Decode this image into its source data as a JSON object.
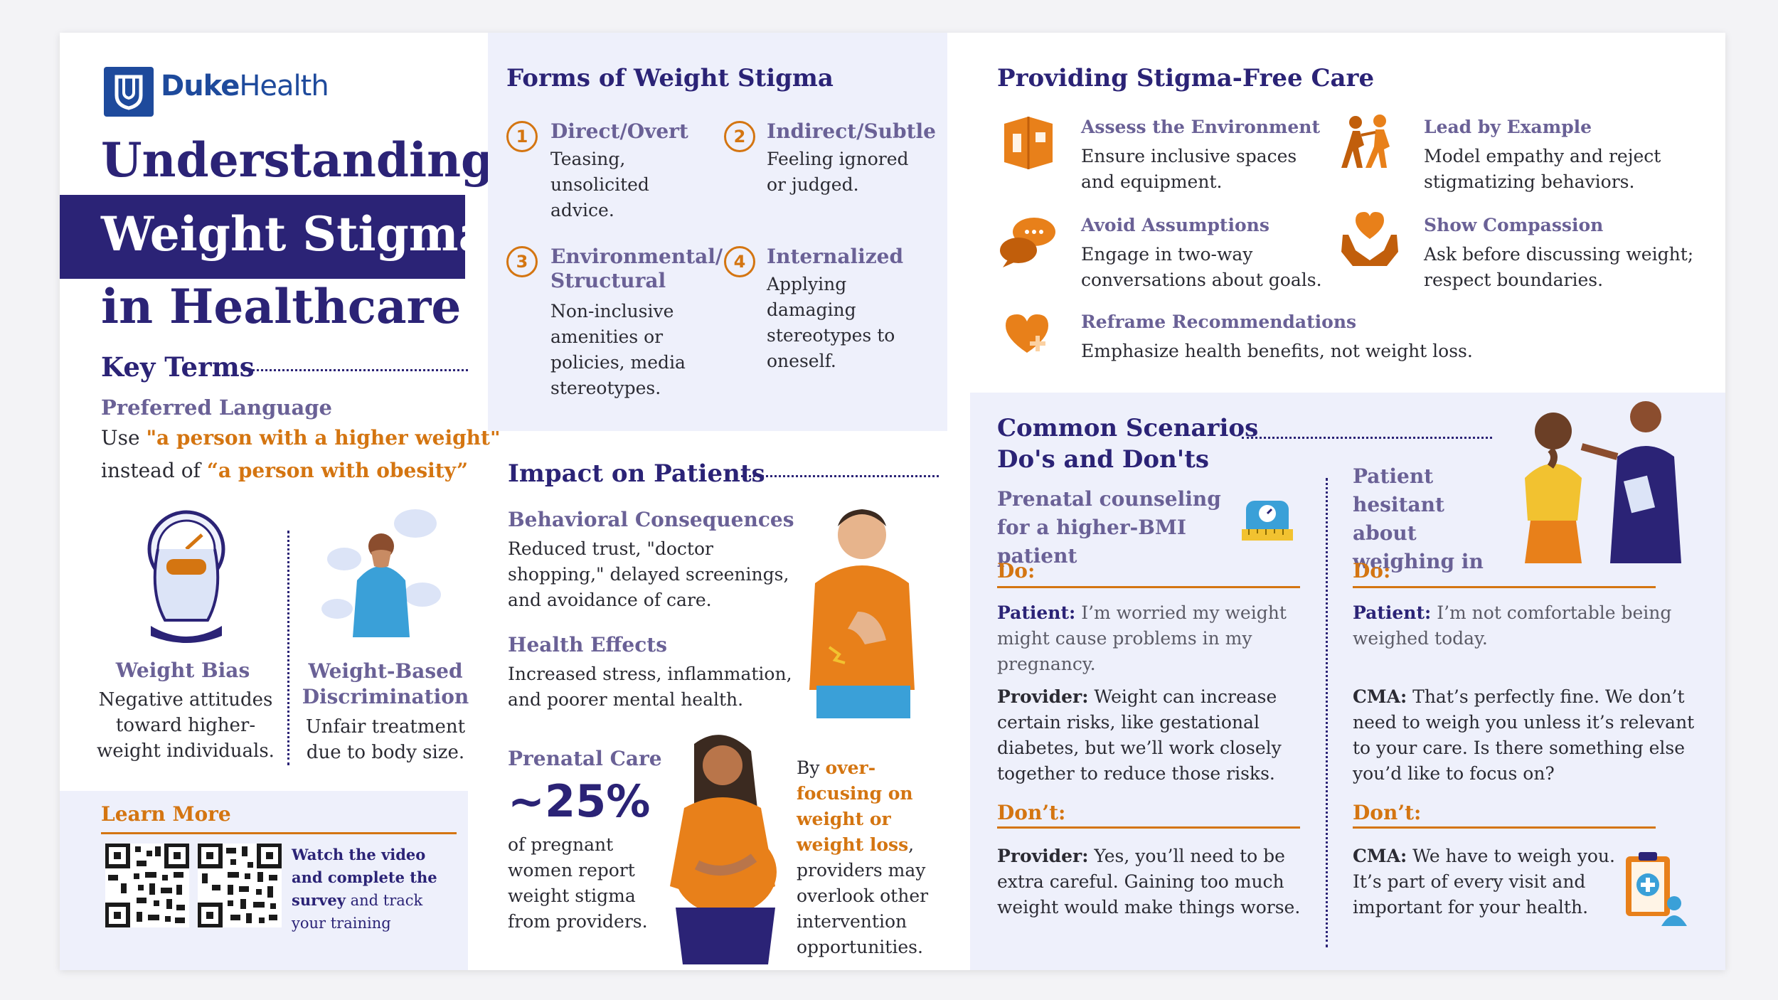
{
  "brand": {
    "name_bold": "Duke",
    "name_light": "Health",
    "accent": "#2b2376",
    "orange": "#d47511",
    "logo_color": "#1e4a9c"
  },
  "title": {
    "line1": "Understanding",
    "line2": "Weight Stigma",
    "line3": "in Healthcare"
  },
  "key_terms": {
    "heading": "Key Terms",
    "preferred_heading": "Preferred Language",
    "use_word": "Use",
    "use_phrase": "\"a person with a higher weight\"",
    "instead_word": "instead of",
    "instead_phrase": "“a person with obesity”",
    "terms": [
      {
        "name": "Weight Bias",
        "desc": "Negative attitudes toward higher-weight individuals.",
        "icon": "person-on-scale-icon"
      },
      {
        "name": "Weight-Based Discrimination",
        "desc": "Unfair treatment due to body size.",
        "icon": "distressed-person-icon"
      }
    ]
  },
  "learn_more": {
    "heading": "Learn More",
    "bold_text": "Watch the video and complete the survey",
    "rest_text": "and track your training"
  },
  "forms": {
    "heading": "Forms of Weight Stigma",
    "items": [
      {
        "num": "1",
        "title": "Direct/Overt",
        "desc": "Teasing, unsolicited advice."
      },
      {
        "num": "2",
        "title": "Indirect/Subtle",
        "desc": "Feeling ignored or judged."
      },
      {
        "num": "3",
        "title": "Environmental/ Structural",
        "desc": "Non-inclusive amenities or policies, media stereotypes."
      },
      {
        "num": "4",
        "title": "Internalized",
        "desc": "Applying damaging stereotypes to oneself."
      }
    ]
  },
  "impact": {
    "heading": "Impact on Patients",
    "behavioral_title": "Behavioral Consequences",
    "behavioral_desc": "Reduced trust, \"doctor shopping,\" delayed screenings, and avoidance of care.",
    "health_title": "Health Effects",
    "health_desc": "Increased stress, inflammation, and poorer mental health.",
    "prenatal_title": "Prenatal Care",
    "stat": "~25%",
    "stat_desc": "of pregnant women report weight stigma from providers.",
    "overfocus_pre": "By",
    "overfocus_highlight": "over-focusing on weight or weight loss",
    "overfocus_post": ", providers may overlook other intervention opportunities."
  },
  "stigma_free": {
    "heading": "Providing Stigma-Free Care",
    "items": [
      {
        "title": "Assess the Environment",
        "desc": "Ensure inclusive spaces and equipment.",
        "icon": "room-icon"
      },
      {
        "title": "Lead by Example",
        "desc": "Model empathy and reject stigmatizing behaviors.",
        "icon": "walking-people-icon"
      },
      {
        "title": "Avoid Assumptions",
        "desc": "Engage in two-way conversations about goals.",
        "icon": "chat-bubbles-icon"
      },
      {
        "title": "Show Compassion",
        "desc": "Ask before discussing weight; respect boundaries.",
        "icon": "hands-heart-icon"
      },
      {
        "title": "Reframe Recommendations",
        "desc": "Emphasize health benefits, not weight loss.",
        "icon": "heart-plus-icon"
      }
    ]
  },
  "scenarios": {
    "heading_line1": "Common Scenarios",
    "heading_line2": "Do's and Don'ts",
    "left": {
      "title": "Prenatal counseling for a higher-BMI patient",
      "do_label": "Do:",
      "do_patient_label": "Patient:",
      "do_patient_text": "I’m worried my weight might cause problems in my pregnancy.",
      "do_provider_label": "Provider:",
      "do_provider_text": "Weight can increase certain risks, like gestational diabetes, but we’ll work closely together to reduce those risks.",
      "dont_label": "Don’t:",
      "dont_provider_label": "Provider:",
      "dont_provider_text": "Yes, you’ll need to be extra careful. Gaining too much weight would make things worse."
    },
    "right": {
      "title": "Patient hesitant about weighing in",
      "do_label": "Do:",
      "do_patient_label": "Patient:",
      "do_patient_text": "I’m not comfortable being weighed today.",
      "do_cma_label": "CMA:",
      "do_cma_text": "That’s perfectly fine. We don’t need to weigh you unless it’s relevant to your care. Is there something else you’d like to focus on?",
      "dont_label": "Don’t:",
      "dont_cma_label": "CMA:",
      "dont_cma_text": "We have to weigh you. It’s part of every visit and important for your health."
    }
  }
}
